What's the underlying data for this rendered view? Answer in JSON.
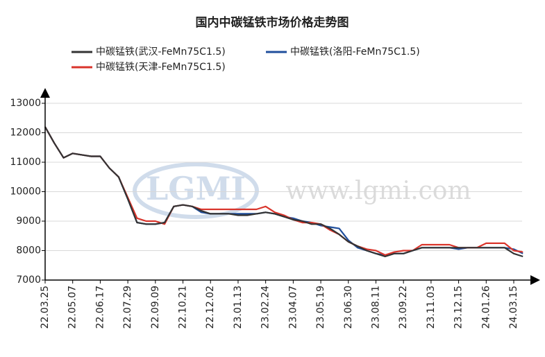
{
  "chart_data": {
    "type": "line",
    "title": "国内中碳锰铁市场价格走势图",
    "watermark_logo": "LGMI",
    "watermark_url": "www.lgmi.com",
    "categories": [
      "22.03.25",
      null,
      null,
      "22.05.07",
      null,
      null,
      "22.06.17",
      null,
      null,
      "22.07.29",
      null,
      null,
      "22.09.09",
      null,
      null,
      "22.10.21",
      null,
      null,
      "22.12.02",
      null,
      null,
      "23.01.13",
      null,
      null,
      "23.02.24",
      null,
      null,
      "23.04.07",
      null,
      null,
      "23.05.19",
      null,
      null,
      "23.06.30",
      null,
      null,
      "23.08.11",
      null,
      null,
      "23.09.22",
      null,
      null,
      "23.11.03",
      null,
      null,
      "23.12.15",
      null,
      null,
      "24.01.26",
      null,
      null,
      "24.03.15",
      null
    ],
    "series": [
      {
        "name": "中碳锰铁(武汉-FeMn75C1.5)",
        "color": "#333333",
        "values": [
          12200,
          11650,
          11150,
          11300,
          11250,
          11200,
          11200,
          10800,
          10500,
          9750,
          8950,
          8900,
          8900,
          8950,
          9500,
          9550,
          9500,
          9350,
          9250,
          9250,
          9250,
          9200,
          9200,
          9250,
          9300,
          9250,
          9150,
          9050,
          9000,
          8900,
          8900,
          8750,
          8550,
          8300,
          8150,
          8000,
          7900,
          7800,
          7900,
          7900,
          8000,
          8100,
          8100,
          8100,
          8100,
          8100,
          8100,
          8100,
          8100,
          8100,
          8100,
          7900,
          7800
        ]
      },
      {
        "name": "中碳锰铁(洛阳-FeMn75C1.5)",
        "color": "#1f4e9c",
        "values": [
          12200,
          11650,
          11150,
          11300,
          11250,
          11200,
          11200,
          10800,
          10500,
          9750,
          8950,
          8900,
          8900,
          8950,
          9500,
          9550,
          9500,
          9300,
          9250,
          9250,
          9250,
          9250,
          9250,
          9250,
          9300,
          9250,
          9150,
          9100,
          9000,
          8950,
          8850,
          8800,
          8750,
          8350,
          8100,
          8000,
          7900,
          7850,
          7900,
          7900,
          8000,
          8100,
          8100,
          8100,
          8100,
          8050,
          8100,
          8100,
          8100,
          8100,
          8100,
          8050,
          7900
        ]
      },
      {
        "name": "中碳锰铁(天津-FeMn75C1.5)",
        "color": "#d9342b",
        "values": [
          12200,
          11650,
          11150,
          11300,
          11250,
          11200,
          11200,
          10800,
          10500,
          9800,
          9100,
          9000,
          9000,
          8900,
          9500,
          9550,
          9500,
          9400,
          9400,
          9400,
          9400,
          9400,
          9400,
          9400,
          9500,
          9300,
          9200,
          9050,
          8950,
          8950,
          8900,
          8700,
          8550,
          8300,
          8150,
          8050,
          8000,
          7850,
          7950,
          8000,
          8000,
          8200,
          8200,
          8200,
          8200,
          8100,
          8100,
          8100,
          8250,
          8250,
          8250,
          8000,
          7950
        ]
      }
    ],
    "ylim": [
      7000,
      13000
    ],
    "yticks": [
      7000,
      8000,
      9000,
      10000,
      11000,
      12000,
      13000
    ],
    "grid": true
  }
}
